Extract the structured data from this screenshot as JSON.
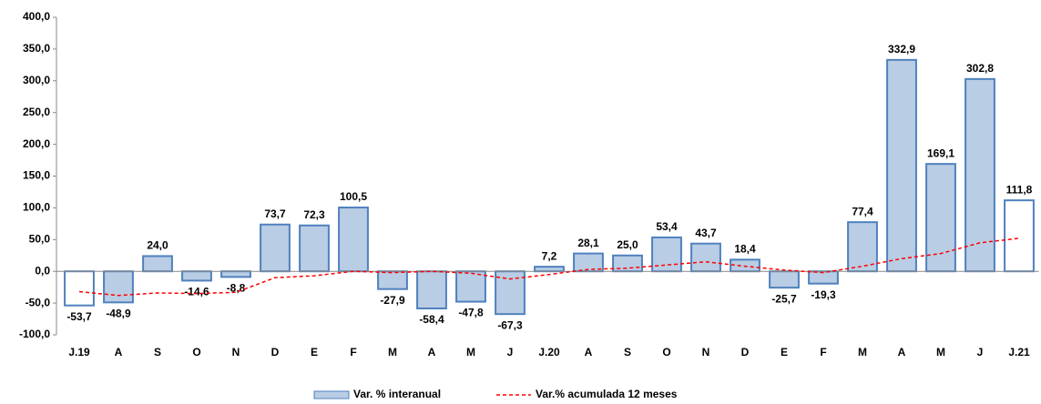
{
  "chart_data": {
    "type": "bar",
    "categories": [
      "J.19",
      "A",
      "S",
      "O",
      "N",
      "D",
      "E",
      "F",
      "M",
      "A",
      "M",
      "J",
      "J.20",
      "A",
      "S",
      "O",
      "N",
      "D",
      "E",
      "F",
      "M",
      "A",
      "M",
      "J",
      "J.21"
    ],
    "series": [
      {
        "name": "Var. % interanual",
        "type": "bar",
        "color": "#b9cde5",
        "edge_color": "#4f81bd",
        "colors": [
          "#ffffff",
          "#b9cde5",
          "#b9cde5",
          "#b9cde5",
          "#b9cde5",
          "#b9cde5",
          "#b9cde5",
          "#b9cde5",
          "#b9cde5",
          "#b9cde5",
          "#b9cde5",
          "#b9cde5",
          "#b9cde5",
          "#b9cde5",
          "#b9cde5",
          "#b9cde5",
          "#b9cde5",
          "#b9cde5",
          "#b9cde5",
          "#b9cde5",
          "#b9cde5",
          "#b9cde5",
          "#b9cde5",
          "#b9cde5",
          "#ffffff"
        ],
        "values": [
          -53.7,
          -48.9,
          24.0,
          -14.6,
          -8.8,
          73.7,
          72.3,
          100.5,
          -27.9,
          -58.4,
          -47.8,
          -67.3,
          7.2,
          28.1,
          25.0,
          53.4,
          43.7,
          18.4,
          -25.7,
          -19.3,
          77.4,
          332.9,
          169.1,
          302.8,
          111.8
        ],
        "value_labels": [
          "-53,7",
          "-48,9",
          "24,0",
          "-14,6",
          "-8,8",
          "73,7",
          "72,3",
          "100,5",
          "-27,9",
          "-58,4",
          "-47,8",
          "-67,3",
          "7,2",
          "28,1",
          "25,0",
          "53,4",
          "43,7",
          "18,4",
          "-25,7",
          "-19,3",
          "77,4",
          "332,9",
          "169,1",
          "302,8",
          "111,8"
        ]
      },
      {
        "name": "Var.% acumulada 12 meses",
        "type": "line",
        "color": "#ff0000",
        "dashed": true,
        "values": [
          -32,
          -38,
          -34,
          -35,
          -33,
          -10,
          -7,
          0,
          -2,
          0,
          -3,
          -12,
          -5,
          3,
          5,
          10,
          15,
          8,
          2,
          -2,
          8,
          20,
          28,
          45,
          52
        ]
      }
    ],
    "ylim": [
      -100,
      400
    ],
    "yticks": [
      {
        "value": -100,
        "label": "-100,0"
      },
      {
        "value": -50,
        "label": "-50,0"
      },
      {
        "value": 0,
        "label": "0,0"
      },
      {
        "value": 50,
        "label": "50,0"
      },
      {
        "value": 100,
        "label": "100,0"
      },
      {
        "value": 150,
        "label": "150,0"
      },
      {
        "value": 200,
        "label": "200,0"
      },
      {
        "value": 250,
        "label": "250,0"
      },
      {
        "value": 300,
        "label": "300,0"
      },
      {
        "value": 350,
        "label": "350,0"
      },
      {
        "value": 400,
        "label": "400,0"
      }
    ],
    "grid": false,
    "legend": "bottom"
  }
}
